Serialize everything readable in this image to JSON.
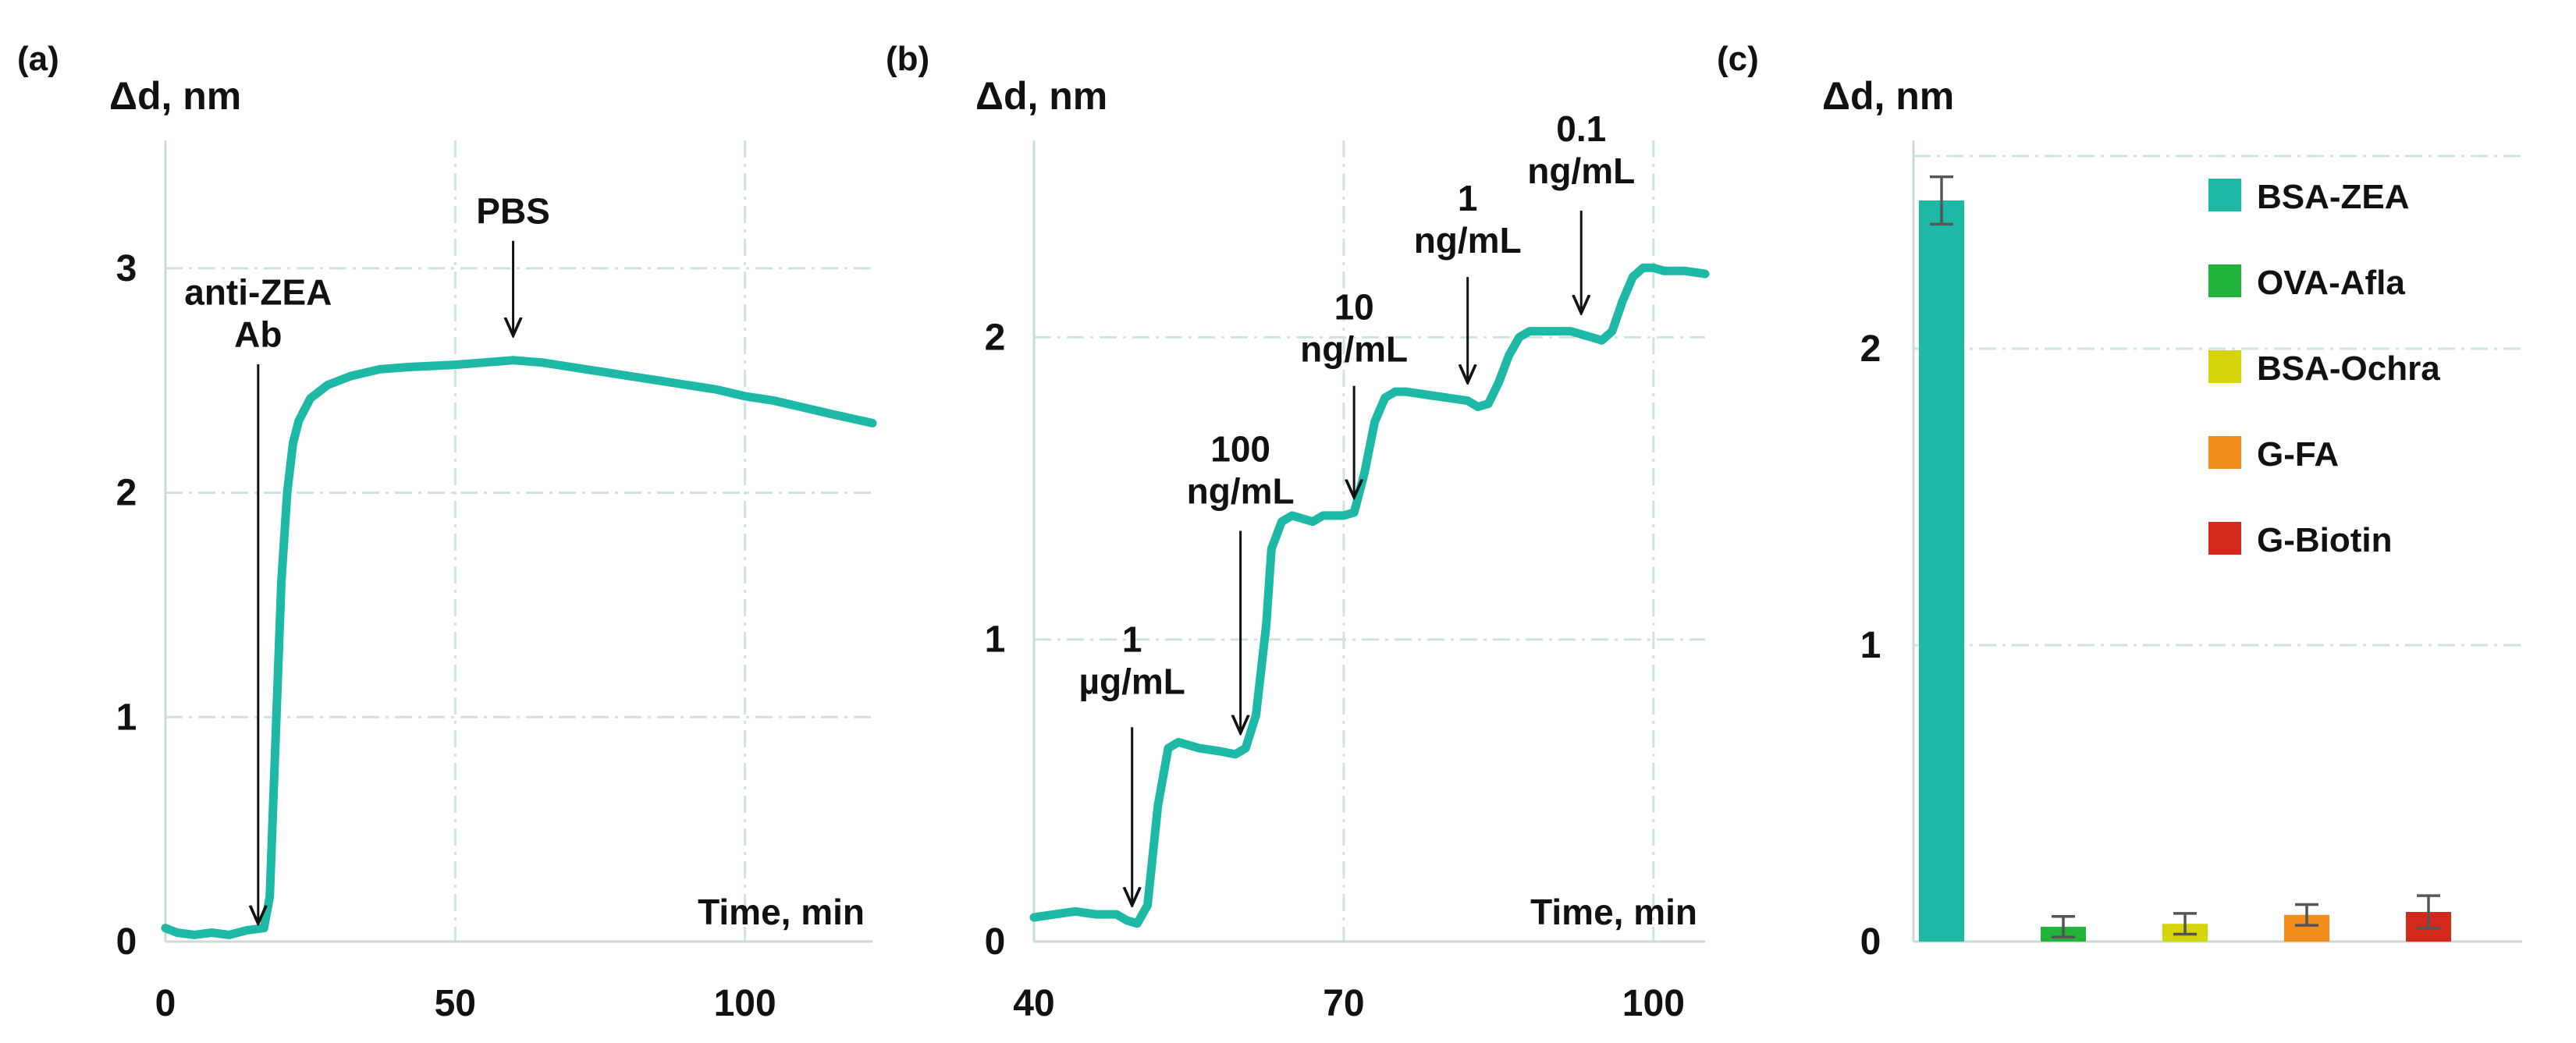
{
  "colors": {
    "teal": "#1eb8a6",
    "green": "#22b33a",
    "yellow": "#d4d40a",
    "orange": "#f28c1c",
    "red": "#d42a1e",
    "grid": "#cfe3de",
    "axis": "#c9dbd6",
    "arrow": "#111111",
    "errorbar": "#555555"
  },
  "chart_data": [
    {
      "panel": "(a)",
      "type": "line",
      "ylabel": "Δd, nm",
      "xlabel": "Time, min",
      "xlim": [
        0,
        122
      ],
      "ylim": [
        0,
        3.5
      ],
      "xticks": [
        0,
        50,
        100
      ],
      "yticks": [
        0,
        1,
        2,
        3
      ],
      "grid_x": [
        50,
        100
      ],
      "grid_y": [
        1,
        2,
        3
      ],
      "series": [
        {
          "name": "signal",
          "x": [
            0,
            2,
            5,
            8,
            11,
            14,
            17,
            18,
            19,
            20,
            21,
            22,
            23,
            25,
            28,
            32,
            37,
            42,
            50,
            55,
            60,
            65,
            70,
            75,
            80,
            85,
            90,
            95,
            100,
            105,
            110,
            115,
            122
          ],
          "y": [
            0.06,
            0.04,
            0.03,
            0.04,
            0.03,
            0.05,
            0.06,
            0.2,
            0.9,
            1.6,
            2.0,
            2.22,
            2.32,
            2.42,
            2.48,
            2.52,
            2.55,
            2.56,
            2.57,
            2.58,
            2.59,
            2.58,
            2.56,
            2.54,
            2.52,
            2.5,
            2.48,
            2.46,
            2.43,
            2.41,
            2.38,
            2.35,
            2.31
          ]
        }
      ],
      "annotations": [
        {
          "lines": [
            "anti-ZEA",
            "Ab"
          ],
          "x": 16,
          "y_text": 2.65,
          "y_arrow_start": 2.6,
          "y_arrow_end": 0.08
        },
        {
          "lines": [
            "PBS"
          ],
          "x": 60,
          "y_text": 3.2,
          "y_arrow_start": 3.15,
          "y_arrow_end": 2.7
        }
      ]
    },
    {
      "panel": "(b)",
      "type": "line",
      "ylabel": "Δd, nm",
      "xlabel": "Time, min",
      "xlim": [
        40,
        105
      ],
      "ylim": [
        0,
        2.6
      ],
      "xticks": [
        40,
        70,
        100
      ],
      "yticks": [
        0,
        1,
        2
      ],
      "grid_x": [
        70,
        100
      ],
      "grid_y": [
        1,
        2
      ],
      "series": [
        {
          "name": "signal",
          "x": [
            40,
            42,
            44,
            46,
            48,
            49,
            50,
            51,
            52,
            53,
            54,
            56,
            58,
            59.5,
            60.5,
            61.5,
            62.5,
            63,
            64,
            65,
            66,
            67,
            68,
            69,
            70,
            71,
            72,
            73,
            74,
            75,
            76,
            78,
            80,
            82,
            83,
            84,
            85,
            86,
            87,
            88,
            90,
            92,
            93,
            94,
            95,
            96,
            97,
            98,
            99,
            100,
            101,
            103,
            105
          ],
          "y": [
            0.08,
            0.09,
            0.1,
            0.09,
            0.09,
            0.07,
            0.06,
            0.12,
            0.45,
            0.64,
            0.66,
            0.64,
            0.63,
            0.62,
            0.64,
            0.75,
            1.05,
            1.3,
            1.39,
            1.41,
            1.4,
            1.39,
            1.41,
            1.41,
            1.41,
            1.42,
            1.55,
            1.72,
            1.8,
            1.82,
            1.82,
            1.81,
            1.8,
            1.79,
            1.77,
            1.78,
            1.85,
            1.94,
            2.0,
            2.02,
            2.02,
            2.02,
            2.01,
            2.0,
            1.99,
            2.02,
            2.12,
            2.2,
            2.23,
            2.23,
            2.22,
            2.22,
            2.21
          ]
        }
      ],
      "annotations": [
        {
          "lines": [
            "1",
            "µg/mL"
          ],
          "x": 49.5,
          "y_text": 0.82,
          "y_arrow_start": 0.73,
          "y_arrow_end": 0.12
        },
        {
          "lines": [
            "100",
            "ng/mL"
          ],
          "x": 60,
          "y_text": 1.45,
          "y_arrow_start": 1.38,
          "y_arrow_end": 0.69
        },
        {
          "lines": [
            "10",
            "ng/mL"
          ],
          "x": 71,
          "y_text": 1.92,
          "y_arrow_start": 1.86,
          "y_arrow_end": 1.47
        },
        {
          "lines": [
            "1",
            "ng/mL"
          ],
          "x": 82,
          "y_text": 2.28,
          "y_arrow_start": 2.22,
          "y_arrow_end": 1.85
        },
        {
          "lines": [
            "0.1",
            "ng/mL"
          ],
          "x": 93,
          "y_text": 2.51,
          "y_arrow_start": 2.44,
          "y_arrow_end": 2.08
        }
      ]
    },
    {
      "panel": "(c)",
      "type": "bar",
      "ylabel": "Δd, nm",
      "ylim": [
        0,
        2.65
      ],
      "yticks": [
        0,
        1,
        2
      ],
      "grid_y": [
        1,
        2,
        2.65
      ],
      "categories": [
        "BSA-ZEA",
        "OVA-Afla",
        "BSA-Ochra",
        "G-FA",
        "G-Biotin"
      ],
      "values": [
        2.5,
        0.05,
        0.06,
        0.09,
        0.1
      ],
      "errors": [
        0.08,
        0.035,
        0.035,
        0.035,
        0.055
      ],
      "colors": [
        "#1eb8a6",
        "#22b33a",
        "#d4d40a",
        "#f28c1c",
        "#d42a1e"
      ],
      "legend": [
        "BSA-ZEA",
        "OVA-Afla",
        "BSA-Ochra",
        "G-FA",
        "G-Biotin"
      ],
      "legend_position": "top-right"
    }
  ]
}
